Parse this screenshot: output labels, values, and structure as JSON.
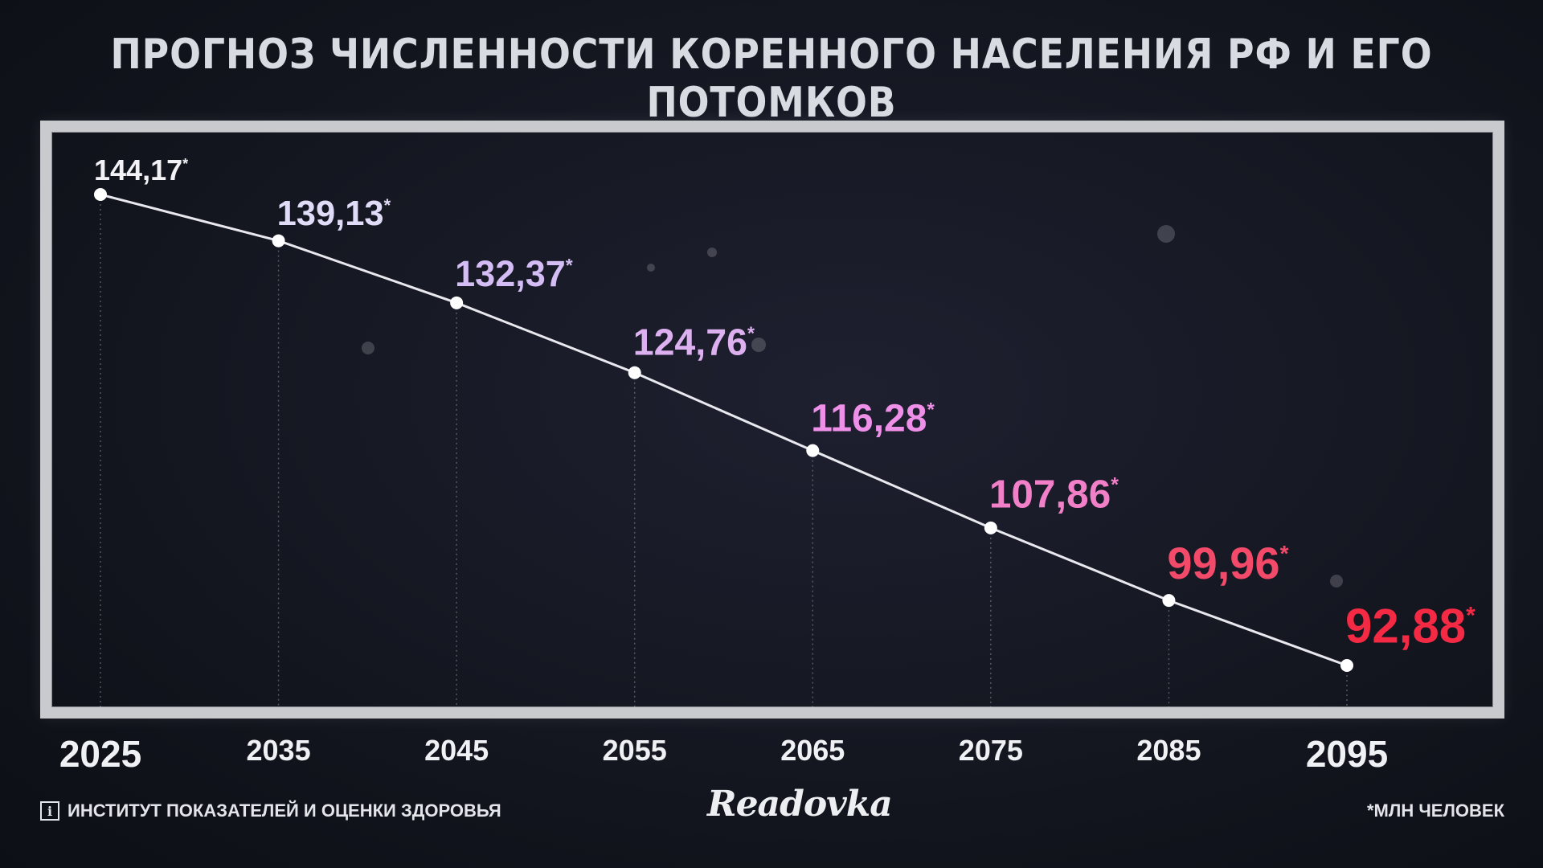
{
  "title": "ПРОГНОЗ ЧИСЛЕННОСТИ КОРЕННОГО НАСЕЛЕНИЯ РФ И ЕГО ПОТОМКОВ",
  "source": {
    "icon": "info-icon",
    "icon_glyph": "i",
    "text": "ИНСТИТУТ ПОКАЗАТЕЛЕЙ И ОЦЕНКИ ЗДОРОВЬЯ"
  },
  "logo": "Readovka",
  "unit_note": "*МЛН ЧЕЛОВЕК",
  "chart_data": {
    "type": "line",
    "x": [
      "2025",
      "2035",
      "2045",
      "2055",
      "2065",
      "2075",
      "2085",
      "2095"
    ],
    "values": [
      144.17,
      139.13,
      132.37,
      124.76,
      116.28,
      107.86,
      99.96,
      92.88
    ],
    "value_labels": [
      "144,17",
      "139,13",
      "132,37",
      "124,76",
      "116,28",
      "107,86",
      "99,96",
      "92,88"
    ],
    "label_suffix": "*",
    "label_colors": [
      "#f2f2f6",
      "#e0dcf8",
      "#d4bdf5",
      "#ddb0f0",
      "#ee8fe8",
      "#f280c8",
      "#f44a6a",
      "#f42a44"
    ],
    "line_color": "#e8e8ee",
    "grid": false,
    "legend": "none"
  }
}
